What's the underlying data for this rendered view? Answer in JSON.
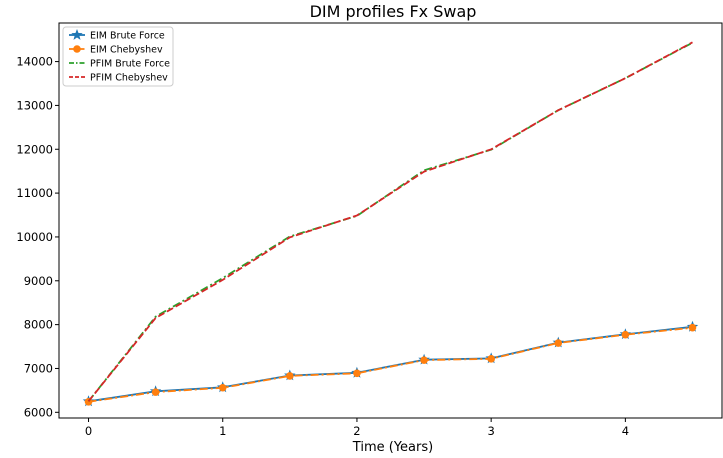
{
  "chart_data": {
    "type": "line",
    "title": "DIM profiles Fx Swap",
    "xlabel": "Time (Years)",
    "ylabel": "",
    "x": [
      0,
      0.5,
      1,
      1.5,
      2,
      2.5,
      3,
      3.5,
      4,
      4.5
    ],
    "xlim": [
      -0.22,
      4.72
    ],
    "ylim": [
      5870,
      14880
    ],
    "xticks": [
      "0",
      "1",
      "2",
      "3",
      "4"
    ],
    "yticks": [
      "6000",
      "7000",
      "8000",
      "9000",
      "10000",
      "11000",
      "12000",
      "13000",
      "14000"
    ],
    "grid": false,
    "legend_position": "top-left",
    "series": [
      {
        "name": "EIM Brute Force",
        "color": "#1f77b4",
        "linestyle": "solid",
        "marker": "star",
        "values": [
          6250,
          6480,
          6570,
          6840,
          6900,
          7200,
          7230,
          7590,
          7780,
          7950
        ]
      },
      {
        "name": "EIM Chebyshev",
        "color": "#ff7f0e",
        "linestyle": "dashdot",
        "marker": "circle",
        "values": [
          6240,
          6460,
          6560,
          6830,
          6890,
          7190,
          7220,
          7580,
          7770,
          7930
        ]
      },
      {
        "name": "PFIM Brute Force",
        "color": "#2ca02c",
        "linestyle": "dashdot",
        "marker": "none",
        "values": [
          6250,
          8180,
          9060,
          10010,
          10480,
          11520,
          11990,
          12890,
          13620,
          14430
        ]
      },
      {
        "name": "PFIM Chebyshev",
        "color": "#d62728",
        "linestyle": "dashed",
        "marker": "none",
        "values": [
          6250,
          8150,
          9020,
          9990,
          10490,
          11490,
          12000,
          12890,
          13620,
          14440
        ]
      }
    ]
  }
}
